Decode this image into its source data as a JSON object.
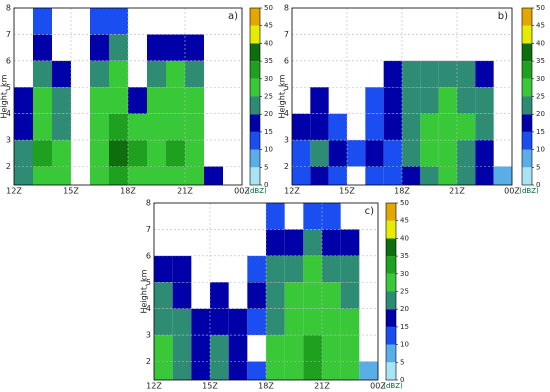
{
  "chart_data": [
    {
      "type": "heatmap",
      "panel_label": "a)",
      "ylabel": "Height, km",
      "xlim": [
        12,
        24
      ],
      "ylim": [
        1.3,
        8
      ],
      "xticks": [
        {
          "value": 12,
          "label": "12Z"
        },
        {
          "value": 15,
          "label": "15Z"
        },
        {
          "value": 18,
          "label": "18Z"
        },
        {
          "value": 21,
          "label": "21Z"
        },
        {
          "value": 24,
          "label": "00Z"
        }
      ],
      "yticks": [
        2,
        3,
        4,
        5,
        6,
        7,
        8
      ],
      "grid": true,
      "xbins": [
        12,
        13,
        14,
        15,
        16,
        17,
        18,
        19,
        20,
        21,
        22,
        23,
        24
      ],
      "ybins": [
        1.3,
        2,
        3,
        4,
        5,
        6,
        7,
        8
      ],
      "z": [
        [
          20,
          28,
          25,
          null,
          25,
          33,
          28,
          25,
          28,
          25,
          15,
          null
        ],
        [
          22,
          30,
          25,
          null,
          27,
          35,
          30,
          25,
          30,
          27,
          null,
          null
        ],
        [
          18,
          28,
          22,
          null,
          28,
          30,
          25,
          27,
          28,
          28,
          null,
          null
        ],
        [
          15,
          25,
          20,
          null,
          25,
          28,
          15,
          25,
          27,
          25,
          null,
          null
        ],
        [
          null,
          22,
          15,
          null,
          22,
          25,
          null,
          22,
          25,
          20,
          null,
          null
        ],
        [
          null,
          18,
          null,
          null,
          15,
          20,
          null,
          15,
          18,
          15,
          null,
          null
        ],
        [
          null,
          12,
          null,
          null,
          10,
          12,
          null,
          null,
          null,
          null,
          null,
          null
        ]
      ],
      "colorbar": {
        "label": "(dBZ)",
        "levels": [
          0,
          5,
          10,
          15,
          20,
          25,
          30,
          35,
          40,
          45,
          50
        ],
        "colors": [
          "#a8e4f4",
          "#5aaee8",
          "#1a4ef0",
          "#0000a8",
          "#2e8c74",
          "#38c838",
          "#1fa01f",
          "#0e6e0e",
          "#e4ec00",
          "#e0a800"
        ]
      }
    },
    {
      "type": "heatmap",
      "panel_label": "b)",
      "ylabel": "Height, km",
      "xlim": [
        12,
        24
      ],
      "ylim": [
        1.3,
        8
      ],
      "xticks": [
        {
          "value": 12,
          "label": "12Z"
        },
        {
          "value": 15,
          "label": "15Z"
        },
        {
          "value": 18,
          "label": "18Z"
        },
        {
          "value": 21,
          "label": "21Z"
        },
        {
          "value": 24,
          "label": "00Z"
        }
      ],
      "yticks": [
        2,
        3,
        4,
        5,
        6,
        7,
        8
      ],
      "grid": true,
      "xbins": [
        12,
        13,
        14,
        15,
        16,
        17,
        18,
        19,
        20,
        21,
        22,
        23,
        24
      ],
      "ybins": [
        1.3,
        2,
        3,
        4,
        5,
        6,
        7,
        8
      ],
      "z": [
        [
          10,
          15,
          12,
          null,
          12,
          10,
          15,
          22,
          25,
          20,
          15,
          8
        ],
        [
          12,
          20,
          15,
          10,
          15,
          12,
          20,
          25,
          25,
          22,
          18,
          null
        ],
        [
          15,
          18,
          12,
          null,
          12,
          15,
          22,
          25,
          28,
          25,
          20,
          null
        ],
        [
          null,
          15,
          null,
          null,
          10,
          18,
          20,
          22,
          25,
          22,
          20,
          null
        ],
        [
          null,
          null,
          null,
          null,
          null,
          18,
          20,
          22,
          20,
          22,
          18,
          null
        ],
        [
          null,
          null,
          null,
          null,
          null,
          null,
          null,
          null,
          null,
          null,
          null,
          null
        ],
        [
          null,
          null,
          null,
          null,
          null,
          null,
          null,
          null,
          null,
          null,
          null,
          null
        ]
      ],
      "colorbar": {
        "label": "(dBZ)",
        "levels": [
          0,
          5,
          10,
          15,
          20,
          25,
          30,
          35,
          40,
          45,
          50
        ],
        "colors": [
          "#a8e4f4",
          "#5aaee8",
          "#1a4ef0",
          "#0000a8",
          "#2e8c74",
          "#38c838",
          "#1fa01f",
          "#0e6e0e",
          "#e4ec00",
          "#e0a800"
        ]
      }
    },
    {
      "type": "heatmap",
      "panel_label": "c)",
      "ylabel": "Height, km",
      "xlim": [
        12,
        24
      ],
      "ylim": [
        1.3,
        8
      ],
      "xticks": [
        {
          "value": 12,
          "label": "12Z"
        },
        {
          "value": 15,
          "label": "15Z"
        },
        {
          "value": 18,
          "label": "18Z"
        },
        {
          "value": 21,
          "label": "21Z"
        },
        {
          "value": 24,
          "label": "00Z"
        }
      ],
      "yticks": [
        2,
        3,
        4,
        5,
        6,
        7,
        8
      ],
      "grid": true,
      "xbins": [
        12,
        13,
        14,
        15,
        16,
        17,
        18,
        19,
        20,
        21,
        22,
        23,
        24
      ],
      "ybins": [
        1.3,
        2,
        3,
        4,
        5,
        6,
        7,
        8
      ],
      "z": [
        [
          25,
          20,
          15,
          20,
          15,
          12,
          28,
          28,
          30,
          27,
          25,
          8
        ],
        [
          25,
          22,
          18,
          22,
          18,
          null,
          25,
          28,
          30,
          27,
          25,
          null
        ],
        [
          22,
          20,
          15,
          18,
          15,
          12,
          22,
          27,
          28,
          28,
          25,
          null
        ],
        [
          20,
          18,
          null,
          15,
          null,
          15,
          22,
          25,
          27,
          25,
          22,
          null
        ],
        [
          15,
          15,
          null,
          null,
          null,
          10,
          20,
          22,
          25,
          22,
          20,
          null
        ],
        [
          null,
          null,
          null,
          null,
          null,
          null,
          15,
          18,
          20,
          18,
          15,
          null
        ],
        [
          null,
          null,
          null,
          null,
          null,
          null,
          10,
          null,
          12,
          12,
          null,
          null
        ]
      ],
      "colorbar": {
        "label": "(dBZ)",
        "levels": [
          0,
          5,
          10,
          15,
          20,
          25,
          30,
          35,
          40,
          45,
          50
        ],
        "colors": [
          "#a8e4f4",
          "#5aaee8",
          "#1a4ef0",
          "#0000a8",
          "#2e8c74",
          "#38c838",
          "#1fa01f",
          "#0e6e0e",
          "#e4ec00",
          "#e0a800"
        ]
      }
    }
  ]
}
